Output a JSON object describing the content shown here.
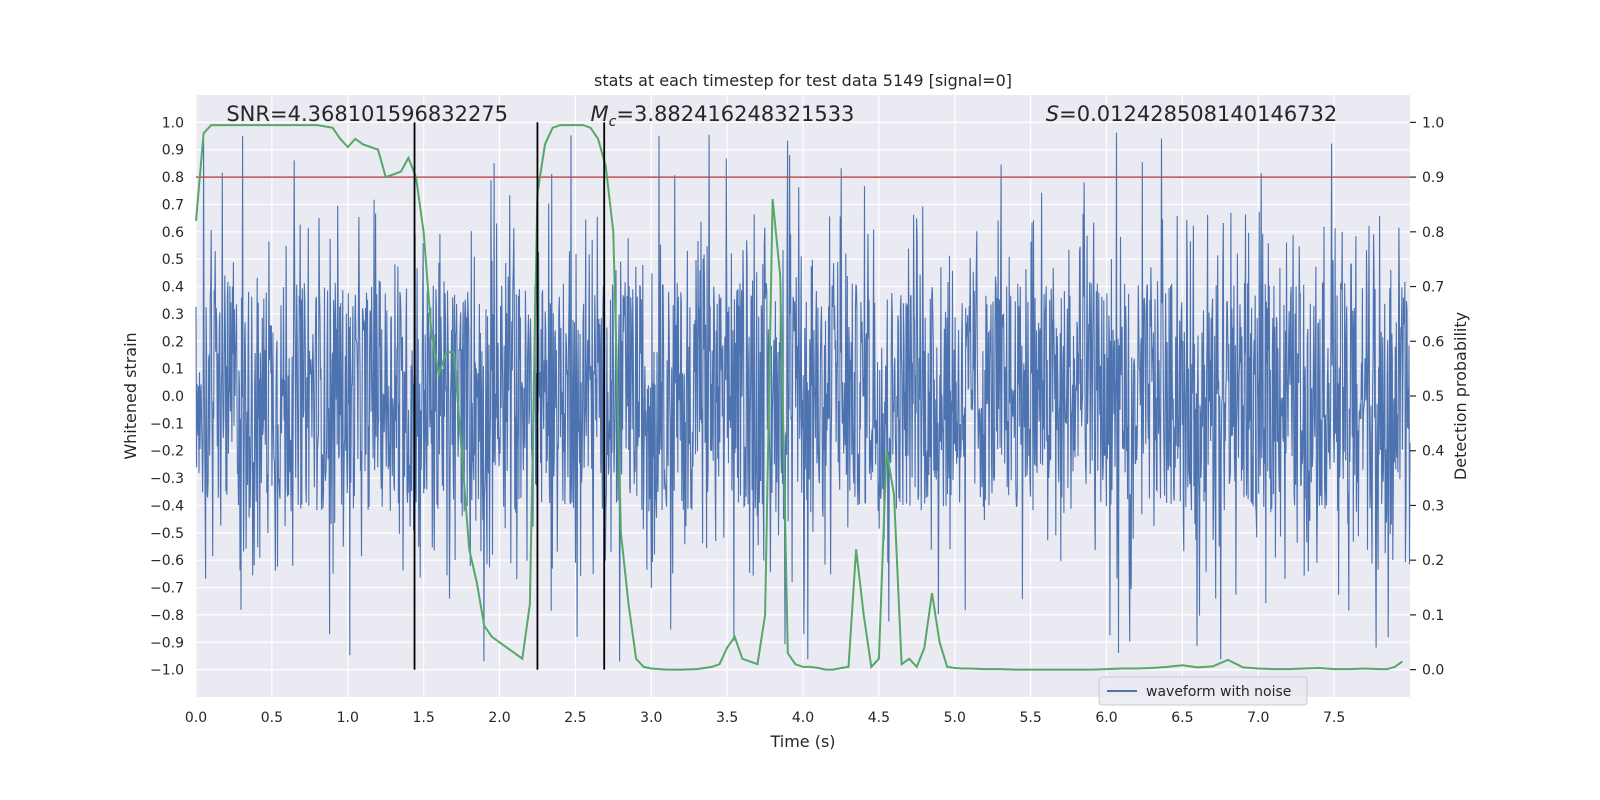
{
  "chart_data": {
    "type": "line",
    "title": "stats at each timestep for test data 5149 [signal=0]",
    "xlabel": "Time (s)",
    "ylabel": "Whitened strain",
    "y2label": "Detection probability",
    "xlim": [
      0.0,
      8.0
    ],
    "ylim": [
      -1.1,
      1.1
    ],
    "y2lim": [
      -0.05,
      1.05
    ],
    "x_ticks": [
      0.0,
      0.5,
      1.0,
      1.5,
      2.0,
      2.5,
      3.0,
      3.5,
      4.0,
      4.5,
      5.0,
      5.5,
      6.0,
      6.5,
      7.0,
      7.5
    ],
    "x_tick_labels": [
      "0.0",
      "0.5",
      "1.0",
      "1.5",
      "2.0",
      "2.5",
      "3.0",
      "3.5",
      "4.0",
      "4.5",
      "5.0",
      "5.5",
      "6.0",
      "6.5",
      "7.0",
      "7.5"
    ],
    "y_ticks": [
      1.0,
      0.9,
      0.8,
      0.7,
      0.6,
      0.5,
      0.4,
      0.3,
      0.2,
      0.1,
      0.0,
      -0.1,
      -0.2,
      -0.3,
      -0.4,
      -0.5,
      -0.6,
      -0.7,
      -0.8,
      -0.9,
      -1.0
    ],
    "y_tick_labels": [
      "1.0",
      "0.9",
      "0.8",
      "0.7",
      "0.6",
      "0.5",
      "0.4",
      "0.3",
      "0.2",
      "0.1",
      "0.0",
      "−0.1",
      "−0.2",
      "−0.3",
      "−0.4",
      "−0.5",
      "−0.6",
      "−0.7",
      "−0.8",
      "−0.9",
      "−1.0"
    ],
    "y2_ticks": [
      1.0,
      0.9,
      0.8,
      0.7,
      0.6,
      0.5,
      0.4,
      0.3,
      0.2,
      0.1,
      0.0
    ],
    "y2_tick_labels": [
      "1.0",
      "0.9",
      "0.8",
      "0.7",
      "0.6",
      "0.5",
      "0.4",
      "0.3",
      "0.2",
      "0.1",
      "0.0"
    ],
    "grid": true,
    "legend": {
      "placement": "lower-right",
      "entries": [
        "waveform with noise"
      ]
    },
    "annotations": {
      "snr": {
        "prefix": "SNR",
        "value": "=4.368101596832275",
        "x": 0.2
      },
      "mc": {
        "prefix": "M",
        "sub": "c",
        "value": "=3.882416248321533",
        "x": 2.6
      },
      "s": {
        "prefix": "S",
        "value": "=0.012428508140146732",
        "x": 5.6
      }
    },
    "threshold_line": {
      "y2": 0.9,
      "color": "#c44e52"
    },
    "vertical_lines": [
      1.44,
      2.25,
      2.69
    ],
    "vertical_line_range": [
      -1.0,
      1.0
    ],
    "series": [
      {
        "name": "waveform with noise",
        "color": "#4c72b0",
        "typical_amplitude": 0.42,
        "peak_max": 1.0,
        "peak_min": -1.0
      },
      {
        "color": "#55a868",
        "axis": "y2",
        "x": [
          0.0,
          0.05,
          0.1,
          0.15,
          0.2,
          0.3,
          0.4,
          0.5,
          0.6,
          0.7,
          0.8,
          0.9,
          0.95,
          1.0,
          1.05,
          1.1,
          1.15,
          1.2,
          1.25,
          1.3,
          1.35,
          1.4,
          1.45,
          1.5,
          1.55,
          1.6,
          1.65,
          1.7,
          1.75,
          1.8,
          1.85,
          1.9,
          1.95,
          2.0,
          2.1,
          2.15,
          2.2,
          2.25,
          2.3,
          2.35,
          2.4,
          2.45,
          2.5,
          2.55,
          2.6,
          2.65,
          2.7,
          2.75,
          2.8,
          2.85,
          2.9,
          2.95,
          3.0,
          3.1,
          3.2,
          3.3,
          3.4,
          3.45,
          3.5,
          3.55,
          3.6,
          3.65,
          3.7,
          3.75,
          3.8,
          3.85,
          3.9,
          3.95,
          4.0,
          4.05,
          4.1,
          4.15,
          4.2,
          4.25,
          4.3,
          4.35,
          4.4,
          4.45,
          4.5,
          4.55,
          4.6,
          4.65,
          4.7,
          4.75,
          4.8,
          4.85,
          4.9,
          4.95,
          5.0,
          5.05,
          5.1,
          5.2,
          5.3,
          5.4,
          5.5,
          5.6,
          5.7,
          5.8,
          5.9,
          6.0,
          6.1,
          6.2,
          6.3,
          6.4,
          6.5,
          6.6,
          6.7,
          6.8,
          6.9,
          7.0,
          7.1,
          7.2,
          7.3,
          7.4,
          7.5,
          7.6,
          7.7,
          7.8,
          7.85,
          7.9,
          7.95
        ],
        "y": [
          0.82,
          0.98,
          0.995,
          0.995,
          0.995,
          0.995,
          0.995,
          0.995,
          0.995,
          0.995,
          0.995,
          0.99,
          0.97,
          0.955,
          0.97,
          0.96,
          0.955,
          0.95,
          0.9,
          0.905,
          0.91,
          0.935,
          0.9,
          0.8,
          0.62,
          0.54,
          0.58,
          0.58,
          0.4,
          0.22,
          0.16,
          0.08,
          0.06,
          0.05,
          0.03,
          0.02,
          0.12,
          0.87,
          0.96,
          0.99,
          0.995,
          0.995,
          0.995,
          0.995,
          0.99,
          0.97,
          0.92,
          0.8,
          0.25,
          0.12,
          0.02,
          0.005,
          0.002,
          0.0,
          0.0,
          0.001,
          0.005,
          0.01,
          0.04,
          0.06,
          0.02,
          0.015,
          0.01,
          0.1,
          0.86,
          0.72,
          0.03,
          0.01,
          0.005,
          0.005,
          0.003,
          0.0,
          0.0,
          0.003,
          0.005,
          0.22,
          0.1,
          0.005,
          0.02,
          0.4,
          0.32,
          0.01,
          0.02,
          0.005,
          0.04,
          0.14,
          0.05,
          0.005,
          0.003,
          0.002,
          0.002,
          0.001,
          0.001,
          0.0,
          0.0,
          0.0,
          0.0,
          0.0,
          0.0,
          0.001,
          0.002,
          0.002,
          0.003,
          0.005,
          0.008,
          0.004,
          0.006,
          0.018,
          0.004,
          0.002,
          0.001,
          0.001,
          0.002,
          0.003,
          0.001,
          0.001,
          0.002,
          0.001,
          0.001,
          0.005,
          0.015
        ]
      }
    ]
  }
}
